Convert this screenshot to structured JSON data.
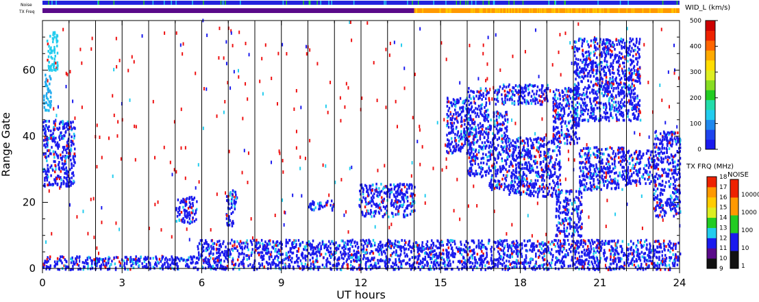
{
  "chart_data": {
    "type": "heatmap",
    "xlabel": "UT hours",
    "ylabel": "Range Gate",
    "xlim": [
      0,
      24
    ],
    "ylim": [
      0,
      75
    ],
    "x_ticks": [
      "0",
      "3",
      "6",
      "9",
      "12",
      "15",
      "18",
      "21",
      "24"
    ],
    "y_ticks": [
      "0",
      "20",
      "40",
      "60"
    ],
    "hour_lines": [
      1,
      2,
      3,
      4,
      5,
      6,
      7,
      8,
      9,
      10,
      11,
      12,
      13,
      14,
      15,
      16,
      17,
      18,
      19,
      20,
      21,
      22,
      23
    ],
    "bar_labels": {
      "noise": "Noise",
      "txfreq": "TX Freq"
    },
    "txfreq_bar": {
      "purple_until_hour": 14.0,
      "after_color": "#ff9900"
    },
    "main_colorbar": {
      "title": "WID_L (km/s)",
      "ticks": [
        "0",
        "100",
        "200",
        "300",
        "400",
        "500"
      ]
    },
    "txfreq_colorbar": {
      "title": "TX FRQ (MHz)",
      "ticks": [
        "9",
        "10",
        "11",
        "12",
        "13",
        "14",
        "15",
        "16",
        "17",
        "18"
      ]
    },
    "noise_colorbar": {
      "title": "NOISE",
      "ticks": [
        "1",
        "10",
        "100",
        "1000",
        "10000"
      ]
    },
    "regions": [
      {
        "x0": 0.0,
        "x1": 1.2,
        "y0": 25,
        "y1": 45,
        "color": "#1a1aee"
      },
      {
        "x0": 0.0,
        "x1": 0.3,
        "y0": 48,
        "y1": 60,
        "color": "#22aaee"
      },
      {
        "x0": 0.15,
        "x1": 0.55,
        "y0": 60,
        "y1": 72,
        "color": "#22ccee"
      },
      {
        "x0": 5.0,
        "x1": 5.8,
        "y0": 14,
        "y1": 22,
        "color": "#1a1aee"
      },
      {
        "x0": 6.9,
        "x1": 7.3,
        "y0": 13,
        "y1": 24,
        "color": "#1a1aee"
      },
      {
        "x0": 10.0,
        "x1": 11.0,
        "y0": 18,
        "y1": 21,
        "color": "#1a1aee"
      },
      {
        "x0": 11.9,
        "x1": 14.0,
        "y0": 16,
        "y1": 26,
        "color": "#1a1aee"
      },
      {
        "x0": 15.2,
        "x1": 16.0,
        "y0": 35,
        "y1": 52,
        "color": "#1a1aee"
      },
      {
        "x0": 16.0,
        "x1": 16.8,
        "y0": 28,
        "y1": 55,
        "color": "#1a1aee"
      },
      {
        "x0": 16.8,
        "x1": 17.5,
        "y0": 24,
        "y1": 48,
        "color": "#1a1aee"
      },
      {
        "x0": 17.5,
        "x1": 19.5,
        "y0": 22,
        "y1": 40,
        "color": "#1a1aee"
      },
      {
        "x0": 17.0,
        "x1": 19.0,
        "y0": 50,
        "y1": 56,
        "color": "#1a1aee"
      },
      {
        "x0": 19.3,
        "x1": 20.3,
        "y0": 10,
        "y1": 24,
        "color": "#1a1aee"
      },
      {
        "x0": 19.2,
        "x1": 20.2,
        "y0": 38,
        "y1": 55,
        "color": "#1a1aee"
      },
      {
        "x0": 20.2,
        "x1": 22.0,
        "y0": 24,
        "y1": 37,
        "color": "#1a1aee"
      },
      {
        "x0": 20.0,
        "x1": 22.5,
        "y0": 45,
        "y1": 70,
        "color": "#1a1aee"
      },
      {
        "x0": 22.0,
        "x1": 23.0,
        "y0": 26,
        "y1": 36,
        "color": "#1a1aee"
      },
      {
        "x0": 23.0,
        "x1": 24.0,
        "y0": 16,
        "y1": 42,
        "color": "#1a1aee"
      },
      {
        "x0": 5.8,
        "x1": 24.0,
        "y0": 0,
        "y1": 9,
        "color": "#1a1aee"
      },
      {
        "x0": 0.0,
        "x1": 5.8,
        "y0": 0,
        "y1": 4,
        "color": "#1a1aee"
      }
    ],
    "grid": false,
    "background": "#ffffff",
    "colors": {
      "plot_blue": "#1a1aee",
      "noise_red": "#ee1111",
      "cyan": "#22ccee",
      "purple": "#5a0a8a"
    }
  }
}
